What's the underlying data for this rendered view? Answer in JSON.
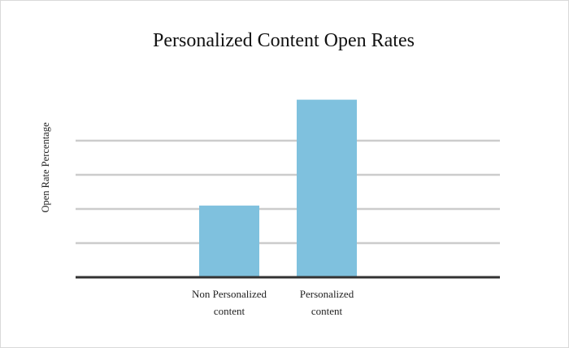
{
  "chart_data": {
    "type": "bar",
    "title": "Personalized Content Open Rates",
    "xlabel": "",
    "ylabel": "Open Rate Percentage",
    "categories": [
      [
        "Non Personalized",
        "content"
      ],
      [
        "Personalized",
        "content"
      ]
    ],
    "values": [
      2.1,
      5.2
    ],
    "ylim": [
      0,
      5
    ],
    "gridlines": [
      1,
      2,
      3,
      4
    ],
    "grid": true,
    "legend": "none",
    "colors": {
      "bar": "#7fc1de",
      "grid": "#cccccc",
      "axis": "#333333"
    }
  }
}
